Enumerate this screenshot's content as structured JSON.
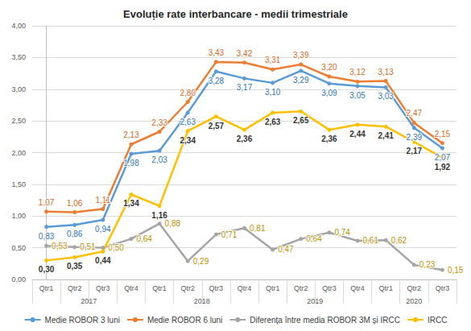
{
  "chart_data": {
    "type": "line",
    "title": "Evoluție rate interbancare - medii trimestriale",
    "categories": [
      "Qtr1",
      "Qtr2",
      "Qtr3",
      "Qtr4",
      "Qtr1",
      "Qtr2",
      "Qtr3",
      "Qtr4",
      "Qtr1",
      "Qtr2",
      "Qtr3",
      "Qtr4",
      "Qtr1",
      "Qtr2",
      "Qtr3"
    ],
    "category_groups": [
      "2017",
      "2017",
      "2017",
      "2017",
      "2018",
      "2018",
      "2018",
      "2018",
      "2019",
      "2019",
      "2019",
      "2019",
      "2020",
      "2020",
      "2020"
    ],
    "ylim": [
      0,
      4
    ],
    "yticks": [
      {
        "value": 0,
        "label": "0,00"
      },
      {
        "value": 0.5,
        "label": "0,50"
      },
      {
        "value": 1,
        "label": "1,00"
      },
      {
        "value": 1.5,
        "label": "1,50"
      },
      {
        "value": 2,
        "label": "2,00"
      },
      {
        "value": 2.5,
        "label": "2,50"
      },
      {
        "value": 3,
        "label": "3,00"
      },
      {
        "value": 3.5,
        "label": "3,50"
      },
      {
        "value": 4,
        "label": "4,00"
      }
    ],
    "grid": true,
    "legend": "bottom",
    "data_labels": true,
    "marker": "circle",
    "series": [
      {
        "name": "Medie ROBOR 3 luni",
        "color": "#5b9bd5",
        "values": [
          0.83,
          0.86,
          0.94,
          1.98,
          2.03,
          2.63,
          3.28,
          3.17,
          3.1,
          3.29,
          3.09,
          3.05,
          3.03,
          2.39,
          2.07
        ],
        "value_labels": [
          "0,83",
          "0,86",
          "0,94",
          "1,98",
          "2,03",
          "2,63",
          "3,28",
          "3,17",
          "3,10",
          "3,29",
          "3,09",
          "3,05",
          "3,03",
          "2,39",
          "2,07"
        ]
      },
      {
        "name": "Medie ROBOR 6 luni",
        "color": "#ed7d31",
        "values": [
          1.07,
          1.06,
          1.11,
          2.13,
          2.33,
          2.8,
          3.43,
          3.42,
          3.31,
          3.39,
          3.2,
          3.12,
          3.13,
          2.47,
          2.15
        ],
        "value_labels": [
          "1,07",
          "1,06",
          "1,11",
          "2,13",
          "2,33",
          "2,80",
          "3,43",
          "3,42",
          "3,31",
          "3,39",
          "3,20",
          "3,12",
          "3,13",
          "2,47",
          "2,15"
        ]
      },
      {
        "name": "Diferența între media ROBOR 3M și IRCC",
        "color": "#a5a5a5",
        "values": [
          0.53,
          0.51,
          0.5,
          0.64,
          0.88,
          0.29,
          0.71,
          0.81,
          0.47,
          0.64,
          0.74,
          0.61,
          0.62,
          0.23,
          0.15
        ],
        "value_labels": [
          "0,53",
          "0,51",
          "0,50",
          "0,64",
          "0,88",
          "0,29",
          "0,71",
          "0,81",
          "0,47",
          "0,64",
          "0,74",
          "0,61",
          "0,62",
          "0,23",
          "0,15"
        ]
      },
      {
        "name": "IRCC",
        "color": "#ffc000",
        "values": [
          0.3,
          0.35,
          0.44,
          1.34,
          1.16,
          2.34,
          2.57,
          2.36,
          2.63,
          2.65,
          2.36,
          2.44,
          2.41,
          2.17,
          1.92
        ],
        "value_labels": [
          "0,30",
          "0,35",
          "0,44",
          "1,34",
          "1,16",
          "2,34",
          "2,57",
          "2,36",
          "2,63",
          "2,65",
          "2,36",
          "2,44",
          "2,41",
          "2,17",
          "1,92"
        ]
      }
    ]
  }
}
